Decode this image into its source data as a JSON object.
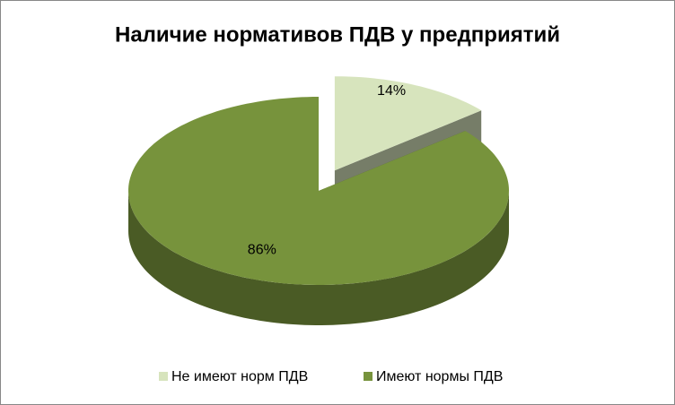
{
  "chart_data": {
    "type": "pie",
    "title": "Наличие нормативов ПДВ у предприятий",
    "categories": [
      "Не имеют норм ПДВ",
      "Имеют нормы ПДВ"
    ],
    "values": [
      14,
      86
    ],
    "value_labels": [
      "14%",
      "86%"
    ],
    "colors": [
      "#d7e4bd",
      "#77933c"
    ],
    "legend": "bottom"
  }
}
